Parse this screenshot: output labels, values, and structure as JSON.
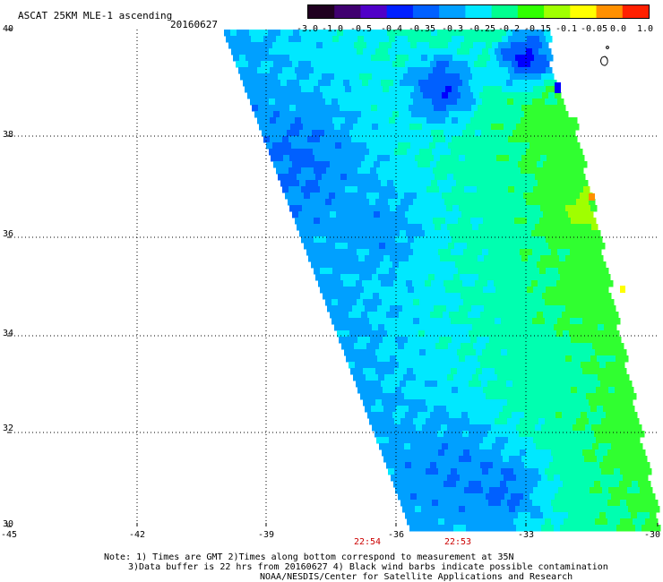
{
  "header": {
    "title": "ASCAT 25KM MLE-1 ascending",
    "date": "20160627"
  },
  "colorbar": {
    "labels": [
      "-3.0",
      "-1.0",
      "-0.5",
      "-0.4",
      "-0.35",
      "-0.3",
      "-0.25",
      "-0.2",
      "-0.15",
      "-0.1",
      "-0.05",
      "0.0",
      "1.0"
    ],
    "colors": [
      "#200020",
      "#400070",
      "#5000c8",
      "#0020ff",
      "#0060ff",
      "#00a0ff",
      "#00e8ff",
      "#00ff90",
      "#30ff00",
      "#a0ff00",
      "#ffff00",
      "#ff9000",
      "#ff2000"
    ]
  },
  "axes": {
    "lat_labels": [
      "40",
      "38",
      "36",
      "34",
      "32",
      "30"
    ],
    "lon_labels": [
      "-45",
      "-42",
      "-39",
      "-36",
      "-33",
      "-30"
    ]
  },
  "times": [
    "22:54",
    "22:53"
  ],
  "notes": {
    "line1": "Note: 1) Times are GMT 2)Times along bottom correspond to measurement at 35N",
    "line2": "3)Data buffer is 22 hrs from 20160627 4) Black wind barbs indicate possible contamination",
    "line3": "NOAA/NESDIS/Center for Satellite Applications and Research"
  },
  "swath": {
    "lat_range": [
      30,
      40
    ],
    "lon_range": [
      -45,
      -30
    ],
    "colors": {
      "dark_blue": "#0000ff",
      "blue": "#0060ff",
      "light_blue": "#00a0ff",
      "cyan": "#00e8ff",
      "aqua_green": "#00ffb0",
      "green": "#30ff30",
      "yellow_green": "#a0ff00",
      "orange": "#ff9000"
    }
  }
}
